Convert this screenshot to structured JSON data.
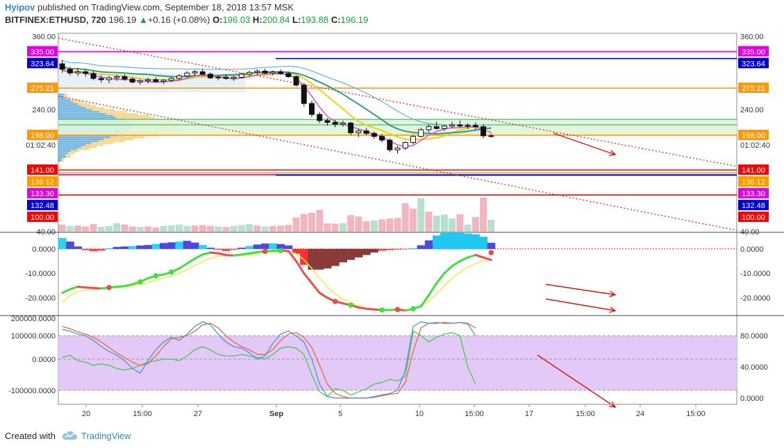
{
  "header": {
    "author": "Hyipov",
    "published_text": "published on TradingView.com, September 18, 2018 13:57 MSK",
    "symbol": "BITFINEX:ETHUSD, 720",
    "last_price": "196.19",
    "change_arrow": "▲",
    "change": "+0.16 (+0.08%)",
    "open_label": "O:",
    "open": "196.03",
    "high_label": "H:",
    "high": "200.84",
    "low_label": "L:",
    "low": "193.88",
    "close_label": "C:",
    "close": "196.19"
  },
  "footer": {
    "created_with": "Created with",
    "brand": "TradingView"
  },
  "colors": {
    "magenta": "#e000e0",
    "navy": "#0000cc",
    "orange": "#ff9900",
    "red": "#ff0000",
    "bull": "#b8e0cf",
    "bear": "#f4b6be",
    "stoch_zone": "#e3c9f8"
  },
  "chart_data": [
    {
      "type": "candlestick",
      "x_ticks": [
        "20",
        "15:00",
        "27",
        "Sep",
        "5",
        "10",
        "15:00",
        "17",
        "15:00",
        "24",
        "15:00"
      ],
      "ylim": [
        40,
        365
      ],
      "y_ticks": [
        "360.00",
        "240.00",
        "40.00"
      ],
      "price_tags": [
        {
          "label": "335.00",
          "value": 335,
          "color": "#e000e0"
        },
        {
          "label": "323.64",
          "value": 323.64,
          "color": "#0000cc"
        },
        {
          "label": "275.21",
          "value": 275.21,
          "color": "#ff9900"
        },
        {
          "label": "198.00",
          "value": 198,
          "color": "#ff9900"
        },
        {
          "label": "141.00",
          "value": 141,
          "color": "#ff0000"
        },
        {
          "label": "136.12",
          "value": 136.12,
          "color": "#ff9900"
        },
        {
          "label": "133.30",
          "value": 133.3,
          "color": "#e000e0"
        },
        {
          "label": "132.48",
          "value": 132.48,
          "color": "#0000cc"
        },
        {
          "label": "100.00",
          "value": 100,
          "color": "#ff0000"
        }
      ],
      "last_price_label": "196.19",
      "countdown_label": "01:02:40",
      "candles": [
        {
          "o": 315,
          "h": 322,
          "l": 300,
          "c": 306
        },
        {
          "o": 306,
          "h": 310,
          "l": 296,
          "c": 300
        },
        {
          "o": 300,
          "h": 308,
          "l": 295,
          "c": 302
        },
        {
          "o": 302,
          "h": 306,
          "l": 294,
          "c": 299
        },
        {
          "o": 299,
          "h": 303,
          "l": 288,
          "c": 291
        },
        {
          "o": 291,
          "h": 296,
          "l": 284,
          "c": 289
        },
        {
          "o": 289,
          "h": 295,
          "l": 283,
          "c": 292
        },
        {
          "o": 292,
          "h": 297,
          "l": 287,
          "c": 294
        },
        {
          "o": 294,
          "h": 298,
          "l": 287,
          "c": 290
        },
        {
          "o": 290,
          "h": 293,
          "l": 283,
          "c": 285
        },
        {
          "o": 285,
          "h": 290,
          "l": 281,
          "c": 287
        },
        {
          "o": 287,
          "h": 292,
          "l": 283,
          "c": 289
        },
        {
          "o": 289,
          "h": 293,
          "l": 284,
          "c": 286
        },
        {
          "o": 286,
          "h": 290,
          "l": 282,
          "c": 288
        },
        {
          "o": 288,
          "h": 294,
          "l": 285,
          "c": 291
        },
        {
          "o": 291,
          "h": 298,
          "l": 288,
          "c": 295
        },
        {
          "o": 295,
          "h": 303,
          "l": 292,
          "c": 300
        },
        {
          "o": 300,
          "h": 305,
          "l": 295,
          "c": 302
        },
        {
          "o": 302,
          "h": 307,
          "l": 296,
          "c": 298
        },
        {
          "o": 298,
          "h": 301,
          "l": 290,
          "c": 292
        },
        {
          "o": 292,
          "h": 296,
          "l": 288,
          "c": 293
        },
        {
          "o": 293,
          "h": 298,
          "l": 289,
          "c": 291
        },
        {
          "o": 291,
          "h": 295,
          "l": 287,
          "c": 293
        },
        {
          "o": 293,
          "h": 300,
          "l": 291,
          "c": 298
        },
        {
          "o": 298,
          "h": 304,
          "l": 295,
          "c": 301
        },
        {
          "o": 301,
          "h": 306,
          "l": 297,
          "c": 303
        },
        {
          "o": 303,
          "h": 307,
          "l": 298,
          "c": 300
        },
        {
          "o": 300,
          "h": 304,
          "l": 296,
          "c": 302
        },
        {
          "o": 302,
          "h": 306,
          "l": 297,
          "c": 299
        },
        {
          "o": 299,
          "h": 302,
          "l": 292,
          "c": 294
        },
        {
          "o": 294,
          "h": 296,
          "l": 278,
          "c": 280
        },
        {
          "o": 280,
          "h": 284,
          "l": 245,
          "c": 250
        },
        {
          "o": 250,
          "h": 255,
          "l": 228,
          "c": 232
        },
        {
          "o": 232,
          "h": 236,
          "l": 218,
          "c": 222
        },
        {
          "o": 222,
          "h": 226,
          "l": 214,
          "c": 219
        },
        {
          "o": 219,
          "h": 223,
          "l": 211,
          "c": 216
        },
        {
          "o": 216,
          "h": 222,
          "l": 212,
          "c": 218
        },
        {
          "o": 218,
          "h": 220,
          "l": 198,
          "c": 202
        },
        {
          "o": 202,
          "h": 208,
          "l": 195,
          "c": 205
        },
        {
          "o": 205,
          "h": 210,
          "l": 198,
          "c": 201
        },
        {
          "o": 201,
          "h": 204,
          "l": 192,
          "c": 196
        },
        {
          "o": 196,
          "h": 200,
          "l": 186,
          "c": 190
        },
        {
          "o": 190,
          "h": 193,
          "l": 170,
          "c": 174
        },
        {
          "o": 174,
          "h": 180,
          "l": 168,
          "c": 177
        },
        {
          "o": 177,
          "h": 188,
          "l": 174,
          "c": 186
        },
        {
          "o": 186,
          "h": 198,
          "l": 183,
          "c": 196
        },
        {
          "o": 196,
          "h": 210,
          "l": 194,
          "c": 207
        },
        {
          "o": 207,
          "h": 216,
          "l": 203,
          "c": 212
        },
        {
          "o": 212,
          "h": 220,
          "l": 207,
          "c": 209
        },
        {
          "o": 209,
          "h": 215,
          "l": 205,
          "c": 213
        },
        {
          "o": 213,
          "h": 220,
          "l": 209,
          "c": 215
        },
        {
          "o": 215,
          "h": 222,
          "l": 211,
          "c": 213
        },
        {
          "o": 213,
          "h": 218,
          "l": 208,
          "c": 214
        },
        {
          "o": 214,
          "h": 219,
          "l": 207,
          "c": 212
        },
        {
          "o": 212,
          "h": 216,
          "l": 193,
          "c": 197
        },
        {
          "o": 197,
          "h": 201,
          "l": 194,
          "c": 196
        }
      ],
      "volume": [
        {
          "v": 30,
          "up": false
        },
        {
          "v": 24,
          "up": true
        },
        {
          "v": 26,
          "up": false
        },
        {
          "v": 22,
          "up": false
        },
        {
          "v": 32,
          "up": false
        },
        {
          "v": 20,
          "up": true
        },
        {
          "v": 24,
          "up": true
        },
        {
          "v": 36,
          "up": true
        },
        {
          "v": 30,
          "up": false
        },
        {
          "v": 22,
          "up": false
        },
        {
          "v": 20,
          "up": true
        },
        {
          "v": 22,
          "up": false
        },
        {
          "v": 18,
          "up": false
        },
        {
          "v": 24,
          "up": true
        },
        {
          "v": 26,
          "up": true
        },
        {
          "v": 30,
          "up": true
        },
        {
          "v": 24,
          "up": true
        },
        {
          "v": 26,
          "up": false
        },
        {
          "v": 28,
          "up": false
        },
        {
          "v": 24,
          "up": false
        },
        {
          "v": 22,
          "up": true
        },
        {
          "v": 20,
          "up": false
        },
        {
          "v": 24,
          "up": true
        },
        {
          "v": 28,
          "up": true
        },
        {
          "v": 32,
          "up": true
        },
        {
          "v": 26,
          "up": false
        },
        {
          "v": 22,
          "up": true
        },
        {
          "v": 24,
          "up": false
        },
        {
          "v": 26,
          "up": false
        },
        {
          "v": 28,
          "up": false
        },
        {
          "v": 60,
          "up": false
        },
        {
          "v": 75,
          "up": false
        },
        {
          "v": 80,
          "up": false
        },
        {
          "v": 92,
          "up": false
        },
        {
          "v": 35,
          "up": false
        },
        {
          "v": 34,
          "up": false
        },
        {
          "v": 36,
          "up": true
        },
        {
          "v": 70,
          "up": false
        },
        {
          "v": 64,
          "up": false
        },
        {
          "v": 44,
          "up": false
        },
        {
          "v": 48,
          "up": true
        },
        {
          "v": 52,
          "up": false
        },
        {
          "v": 56,
          "up": false
        },
        {
          "v": 58,
          "up": false
        },
        {
          "v": 120,
          "up": false
        },
        {
          "v": 98,
          "up": false
        },
        {
          "v": 142,
          "up": true
        },
        {
          "v": 85,
          "up": false
        },
        {
          "v": 68,
          "up": true
        },
        {
          "v": 72,
          "up": true
        },
        {
          "v": 56,
          "up": true
        },
        {
          "v": 74,
          "up": false
        },
        {
          "v": 30,
          "up": true
        },
        {
          "v": 62,
          "up": false
        },
        {
          "v": 145,
          "up": false
        },
        {
          "v": 50,
          "up": true
        }
      ]
    },
    {
      "type": "line",
      "name": "momentum",
      "y_ticks": [
        "0.0000",
        "-10.0000",
        "-20.0000"
      ],
      "ylim": [
        -27,
        6.5
      ],
      "histogram": [
        4.5,
        3,
        1,
        -0.5,
        -1,
        -0.7,
        0.3,
        0.8,
        1,
        1.2,
        1.4,
        1.6,
        2,
        2.4,
        2.7,
        3,
        3.3,
        2.6,
        1.6,
        0.5,
        -0.4,
        -0.9,
        -0.4,
        0.5,
        1.2,
        1.8,
        2.2,
        2.3,
        2.0,
        1.4,
        -2,
        -6.5,
        -8.5,
        -8.5,
        -8,
        -7,
        -5.5,
        -4.5,
        -3.5,
        -2.5,
        -1.5,
        -0.8,
        -0.5,
        -0.3,
        -0.2,
        0.3,
        1.5,
        3.5,
        5.5,
        6.5,
        6.5,
        6.5,
        6.3,
        6,
        5,
        2.5
      ],
      "fast": [
        -18,
        -16.5,
        -15.5,
        -15.8,
        -16,
        -16.2,
        -15.8,
        -15.5,
        -15.2,
        -14.5,
        -13.5,
        -12,
        -11,
        -10.5,
        -9.5,
        -8,
        -6,
        -4,
        -2.3,
        -1.5,
        -1.8,
        -2.5,
        -2.7,
        -2.3,
        -1.8,
        -1.3,
        -1,
        -0.8,
        -0.7,
        -0.9,
        -5,
        -10,
        -14,
        -18,
        -20,
        -21.5,
        -22.3,
        -23,
        -24,
        -24.5,
        -24.8,
        -25,
        -25,
        -24.8,
        -25.2,
        -24.5,
        -23.5,
        -19,
        -14,
        -10,
        -7,
        -5,
        -3.5,
        -2.5,
        -3.5,
        -4.5
      ],
      "slow": [
        -22,
        -19,
        -17.5,
        -16.8,
        -16.5,
        -16.3,
        -16.1,
        -15.9,
        -15.6,
        -15.2,
        -14.6,
        -13.8,
        -12.8,
        -11.8,
        -11,
        -10,
        -8.5,
        -6.8,
        -5.2,
        -3.8,
        -3,
        -2.8,
        -2.8,
        -2.7,
        -2.4,
        -2,
        -1.6,
        -1.3,
        -1,
        -0.9,
        -2,
        -4.5,
        -8,
        -12,
        -15.5,
        -18.5,
        -20.5,
        -22,
        -23.3,
        -24.3,
        -24.8,
        -25,
        -25.2,
        -25.2,
        -25,
        -24.5,
        -23.5,
        -21.5,
        -18.5,
        -15,
        -12,
        -9.5,
        -7.5,
        -6,
        -5,
        -4.5
      ]
    },
    {
      "type": "line",
      "name": "stochastic",
      "left_ticks": [
        "200000.0000",
        "100000.0000",
        "0.0000",
        "-100000.0000"
      ],
      "right_ticks": [
        "80.0000",
        "40.0000",
        "0.0000"
      ],
      "ylim": [
        -8,
        105
      ],
      "band": [
        50,
        80
      ],
      "k": [
        88,
        86,
        82,
        80,
        74,
        66,
        60,
        55,
        48,
        38,
        32,
        48,
        62,
        72,
        78,
        74,
        82,
        92,
        98,
        94,
        82,
        72,
        66,
        64,
        58,
        50,
        54,
        70,
        82,
        86,
        80,
        72,
        50,
        18,
        2,
        0,
        0,
        0,
        0,
        0,
        2,
        4,
        6,
        10,
        36,
        92,
        98,
        96,
        96,
        97,
        96,
        97,
        95,
        80
      ],
      "d": [
        92,
        89,
        85,
        82,
        78,
        72,
        65,
        58,
        52,
        46,
        42,
        44,
        54,
        66,
        76,
        78,
        80,
        86,
        94,
        96,
        90,
        80,
        72,
        66,
        62,
        56,
        56,
        62,
        74,
        82,
        84,
        78,
        65,
        42,
        18,
        6,
        2,
        0,
        0,
        0,
        1,
        3,
        5,
        6,
        20,
        60,
        90,
        96,
        97,
        96,
        96,
        97,
        96,
        90
      ],
      "fast": [
        52,
        55,
        48,
        46,
        42,
        44,
        42,
        38,
        36,
        38,
        42,
        46,
        48,
        50,
        50,
        48,
        54,
        62,
        66,
        62,
        56,
        54,
        54,
        56,
        54,
        52,
        50,
        56,
        64,
        66,
        64,
        56,
        30,
        8,
        2,
        12,
        10,
        4,
        8,
        12,
        18,
        20,
        24,
        22,
        28,
        86,
        80,
        72,
        78,
        82,
        84,
        80,
        40,
        18
      ]
    }
  ]
}
